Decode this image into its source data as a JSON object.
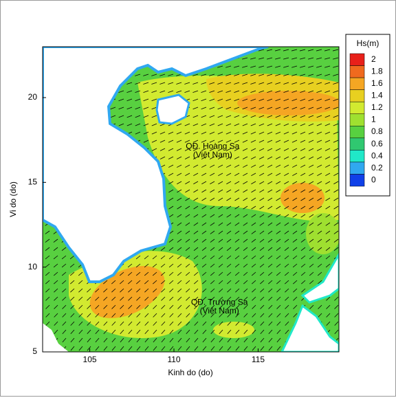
{
  "chart_data": {
    "type": "map",
    "x_label": "Kinh do (do)",
    "y_label": "Vi do (do)",
    "xlim": [
      102.2,
      119.8
    ],
    "ylim": [
      5,
      23
    ],
    "xticks": [
      105,
      110,
      115
    ],
    "yticks": [
      5,
      10,
      15,
      20
    ],
    "annotations": [
      {
        "text": "QĐ. Hoàng Sa",
        "x": 112.3,
        "y": 17.1
      },
      {
        "text": "(Việt Nam)",
        "x": 112.3,
        "y": 16.6
      },
      {
        "text": "QĐ. Trường Sa",
        "x": 112.7,
        "y": 7.9
      },
      {
        "text": "(Việt Nam)",
        "x": 112.7,
        "y": 7.4
      }
    ],
    "colorbar": {
      "title": "Hs(m)",
      "levels": [
        2,
        1.8,
        1.6,
        1.4,
        1.2,
        1,
        0.8,
        0.6,
        0.4,
        0.2,
        0
      ],
      "colors": [
        "#e8201a",
        "#f06a1e",
        "#f5a623",
        "#e8d020",
        "#d2ea30",
        "#9fe030",
        "#58d040",
        "#30c870",
        "#20e8c8",
        "#30a8f0",
        "#1040e8"
      ]
    }
  }
}
